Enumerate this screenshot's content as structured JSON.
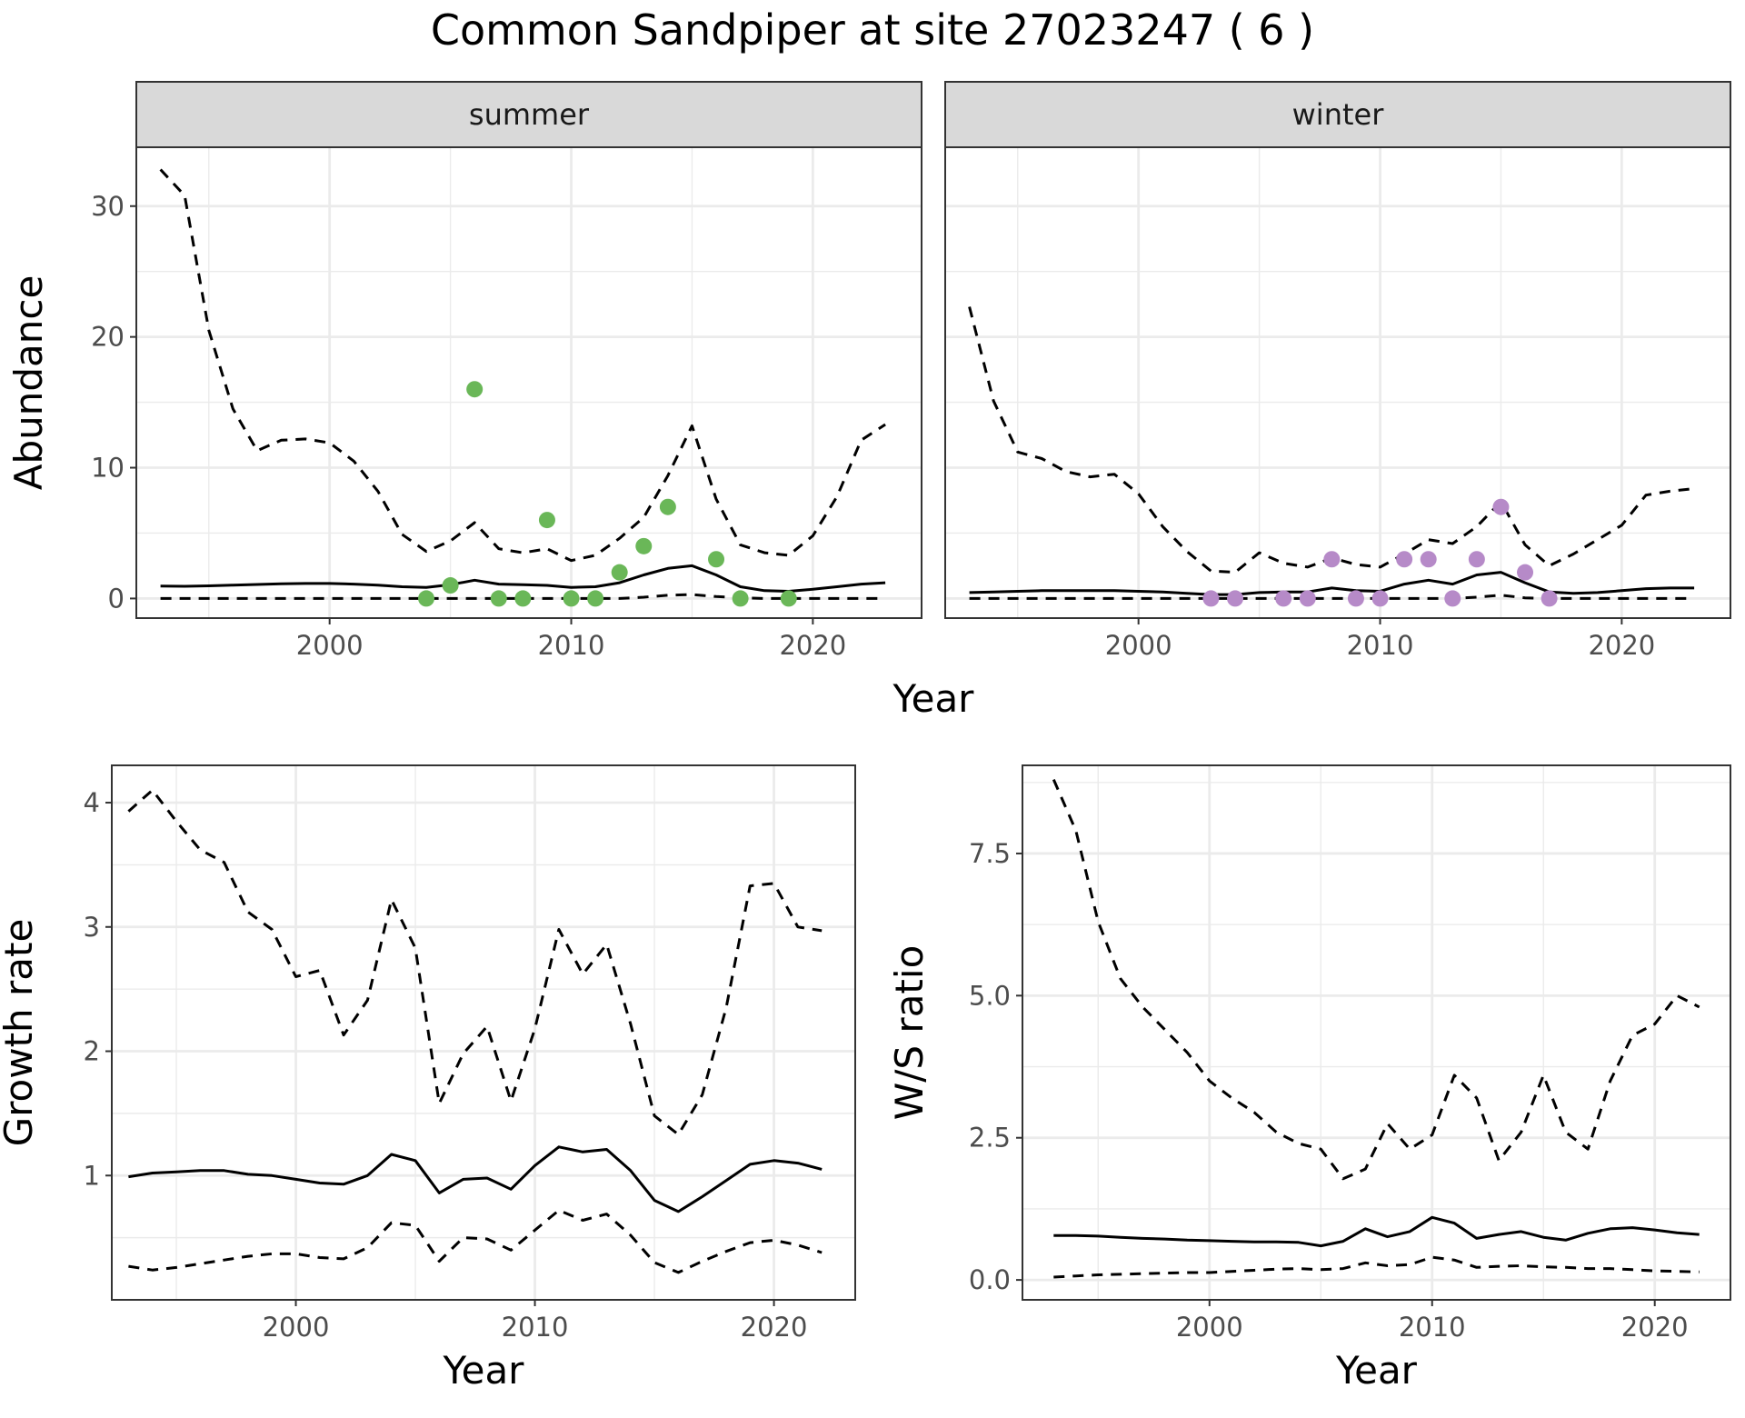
{
  "title": "Common Sandpiper at site 27023247 ( 6 )",
  "colors": {
    "summer_points": "#6ab758",
    "winter_points": "#b68ac8",
    "line": "#000000",
    "grid": "#ebebeb",
    "strip": "#d9d9d9"
  },
  "chart_data": [
    {
      "type": "line",
      "panel": "summer",
      "strip_label": "summer",
      "xlabel": "Year",
      "ylabel": "Abundance",
      "xlim": [
        1992,
        2024.5
      ],
      "ylim": [
        -1.5,
        34.5
      ],
      "x_ticks": [
        2000,
        2010,
        2020
      ],
      "y_ticks": [
        0,
        10,
        20,
        30
      ],
      "x": [
        1993,
        1994,
        1995,
        1996,
        1997,
        1998,
        1999,
        2000,
        2001,
        2002,
        2003,
        2004,
        2005,
        2006,
        2007,
        2008,
        2009,
        2010,
        2011,
        2012,
        2013,
        2014,
        2015,
        2016,
        2017,
        2018,
        2019,
        2020,
        2021,
        2022,
        2023
      ],
      "series": [
        {
          "role": "upper",
          "style": "dashed",
          "values": [
            32.8,
            30.8,
            20.5,
            14.5,
            11.3,
            12.1,
            12.2,
            11.9,
            10.5,
            8.2,
            4.9,
            3.6,
            4.4,
            5.8,
            3.8,
            3.5,
            3.8,
            2.9,
            3.3,
            4.6,
            6.2,
            9.4,
            13.2,
            7.6,
            4.1,
            3.5,
            3.3,
            4.8,
            7.8,
            12.1,
            13.3
          ]
        },
        {
          "role": "mean",
          "style": "solid",
          "values": [
            0.95,
            0.93,
            0.97,
            1.02,
            1.07,
            1.12,
            1.15,
            1.15,
            1.1,
            1.02,
            0.9,
            0.85,
            1.05,
            1.4,
            1.1,
            1.05,
            1.0,
            0.85,
            0.9,
            1.2,
            1.8,
            2.3,
            2.5,
            1.8,
            0.9,
            0.6,
            0.55,
            0.7,
            0.9,
            1.1,
            1.2
          ]
        },
        {
          "role": "lower",
          "style": "dashed",
          "values": [
            0,
            0,
            0,
            0,
            0,
            0,
            0,
            0,
            0,
            0,
            0,
            0,
            0,
            0,
            0,
            0,
            0,
            0,
            0,
            0,
            0.1,
            0.25,
            0.3,
            0.15,
            0.05,
            0,
            0,
            0,
            0,
            0,
            0
          ]
        }
      ],
      "points": {
        "x": [
          2004,
          2005,
          2006,
          2007,
          2008,
          2009,
          2010,
          2011,
          2012,
          2013,
          2014,
          2016,
          2017,
          2019
        ],
        "y": [
          0,
          1,
          16,
          0,
          0,
          6,
          0,
          0,
          2,
          4,
          7,
          3,
          0,
          0
        ]
      }
    },
    {
      "type": "line",
      "panel": "winter",
      "strip_label": "winter",
      "xlabel": "Year",
      "ylabel": "",
      "xlim": [
        1992,
        2024.5
      ],
      "ylim": [
        -1.5,
        34.5
      ],
      "x_ticks": [
        2000,
        2010,
        2020
      ],
      "y_ticks": [
        0,
        10,
        20,
        30
      ],
      "x": [
        1993,
        1994,
        1995,
        1996,
        1997,
        1998,
        1999,
        2000,
        2001,
        2002,
        2003,
        2004,
        2005,
        2006,
        2007,
        2008,
        2009,
        2010,
        2011,
        2012,
        2013,
        2014,
        2015,
        2016,
        2017,
        2018,
        2019,
        2020,
        2021,
        2022,
        2023
      ],
      "series": [
        {
          "role": "upper",
          "style": "dashed",
          "values": [
            22.3,
            15.1,
            11.2,
            10.7,
            9.7,
            9.3,
            9.5,
            8.0,
            5.5,
            3.6,
            2.1,
            2.0,
            3.5,
            2.7,
            2.4,
            3.1,
            2.6,
            2.4,
            3.4,
            4.5,
            4.2,
            5.5,
            7.4,
            4.1,
            2.5,
            3.4,
            4.5,
            5.6,
            7.9,
            8.2,
            8.4
          ]
        },
        {
          "role": "mean",
          "style": "solid",
          "values": [
            0.45,
            0.5,
            0.55,
            0.6,
            0.6,
            0.6,
            0.6,
            0.55,
            0.5,
            0.4,
            0.3,
            0.3,
            0.45,
            0.5,
            0.5,
            0.8,
            0.6,
            0.55,
            1.1,
            1.4,
            1.1,
            1.8,
            2.0,
            1.2,
            0.5,
            0.4,
            0.45,
            0.6,
            0.75,
            0.8,
            0.8
          ]
        },
        {
          "role": "lower",
          "style": "dashed",
          "values": [
            0,
            0,
            0,
            0,
            0,
            0,
            0,
            0,
            0,
            0,
            0,
            0,
            0,
            0,
            0,
            0,
            0,
            0,
            0,
            0,
            0,
            0.1,
            0.25,
            0.05,
            0,
            0,
            0,
            0,
            0,
            0,
            0
          ]
        }
      ],
      "points": {
        "x": [
          2003,
          2004,
          2006,
          2007,
          2008,
          2009,
          2010,
          2011,
          2012,
          2013,
          2014,
          2015,
          2016,
          2017
        ],
        "y": [
          0,
          0,
          0,
          0,
          3,
          0,
          0,
          3,
          3,
          0,
          3,
          7,
          2,
          0
        ]
      }
    },
    {
      "type": "line",
      "panel": "growth",
      "xlabel": "Year",
      "ylabel": "Growth rate",
      "xlim": [
        1992.3,
        2023.4
      ],
      "ylim": [
        0.0,
        4.3
      ],
      "x_ticks": [
        2000,
        2010,
        2020
      ],
      "y_ticks": [
        1,
        2,
        3,
        4
      ],
      "x": [
        1993,
        1994,
        1995,
        1996,
        1997,
        1998,
        1999,
        2000,
        2001,
        2002,
        2003,
        2004,
        2005,
        2006,
        2007,
        2008,
        2009,
        2010,
        2011,
        2012,
        2013,
        2014,
        2015,
        2016,
        2017,
        2018,
        2019,
        2020,
        2021,
        2022
      ],
      "series": [
        {
          "role": "upper",
          "style": "dashed",
          "values": [
            3.93,
            4.1,
            3.85,
            3.62,
            3.52,
            3.12,
            2.98,
            2.6,
            2.65,
            2.13,
            2.41,
            3.22,
            2.83,
            1.58,
            1.98,
            2.2,
            1.6,
            2.18,
            2.98,
            2.62,
            2.86,
            2.22,
            1.48,
            1.33,
            1.65,
            2.35,
            3.33,
            3.35,
            3.0,
            2.97
          ]
        },
        {
          "role": "mean",
          "style": "solid",
          "values": [
            0.99,
            1.02,
            1.03,
            1.04,
            1.04,
            1.01,
            1.0,
            0.97,
            0.94,
            0.93,
            1.0,
            1.17,
            1.12,
            0.86,
            0.97,
            0.98,
            0.89,
            1.08,
            1.23,
            1.19,
            1.21,
            1.04,
            0.8,
            0.71,
            0.83,
            0.96,
            1.09,
            1.12,
            1.1,
            1.05
          ]
        },
        {
          "role": "lower",
          "style": "dashed",
          "values": [
            0.27,
            0.24,
            0.26,
            0.29,
            0.32,
            0.35,
            0.37,
            0.37,
            0.34,
            0.33,
            0.42,
            0.62,
            0.6,
            0.31,
            0.5,
            0.49,
            0.4,
            0.56,
            0.72,
            0.64,
            0.69,
            0.52,
            0.3,
            0.22,
            0.31,
            0.39,
            0.46,
            0.48,
            0.44,
            0.38
          ]
        }
      ]
    },
    {
      "type": "line",
      "panel": "ratio",
      "xlabel": "Year",
      "ylabel": "W/S ratio",
      "xlim": [
        1991.6,
        2023.4
      ],
      "ylim": [
        -0.35,
        9.05
      ],
      "x_ticks": [
        2000,
        2010,
        2020
      ],
      "y_ticks": [
        0.0,
        2.5,
        5.0,
        7.5
      ],
      "y_tick_labels": [
        "0.0",
        "2.5",
        "5.0",
        "7.5"
      ],
      "x": [
        1993,
        1994,
        1995,
        1996,
        1997,
        1998,
        1999,
        2000,
        2001,
        2002,
        2003,
        2004,
        2005,
        2006,
        2007,
        2008,
        2009,
        2010,
        2011,
        2012,
        2013,
        2014,
        2015,
        2016,
        2017,
        2018,
        2019,
        2020,
        2021,
        2022
      ],
      "series": [
        {
          "role": "upper",
          "style": "dashed",
          "values": [
            8.8,
            7.9,
            6.3,
            5.3,
            4.8,
            4.4,
            4.0,
            3.5,
            3.2,
            2.95,
            2.6,
            2.4,
            2.3,
            1.78,
            1.95,
            2.75,
            2.3,
            2.55,
            3.6,
            3.2,
            2.1,
            2.6,
            3.6,
            2.6,
            2.3,
            3.5,
            4.3,
            4.5,
            5.0,
            4.8
          ]
        },
        {
          "role": "mean",
          "style": "solid",
          "values": [
            0.78,
            0.78,
            0.77,
            0.75,
            0.73,
            0.72,
            0.7,
            0.69,
            0.68,
            0.67,
            0.67,
            0.66,
            0.6,
            0.68,
            0.9,
            0.76,
            0.85,
            1.1,
            1.0,
            0.73,
            0.8,
            0.85,
            0.75,
            0.7,
            0.82,
            0.9,
            0.92,
            0.88,
            0.83,
            0.8
          ]
        },
        {
          "role": "lower",
          "style": "dashed",
          "values": [
            0.05,
            0.07,
            0.09,
            0.1,
            0.11,
            0.12,
            0.13,
            0.13,
            0.15,
            0.17,
            0.19,
            0.2,
            0.18,
            0.2,
            0.3,
            0.25,
            0.27,
            0.4,
            0.35,
            0.22,
            0.24,
            0.25,
            0.23,
            0.22,
            0.2,
            0.2,
            0.18,
            0.16,
            0.15,
            0.14
          ]
        }
      ]
    }
  ]
}
